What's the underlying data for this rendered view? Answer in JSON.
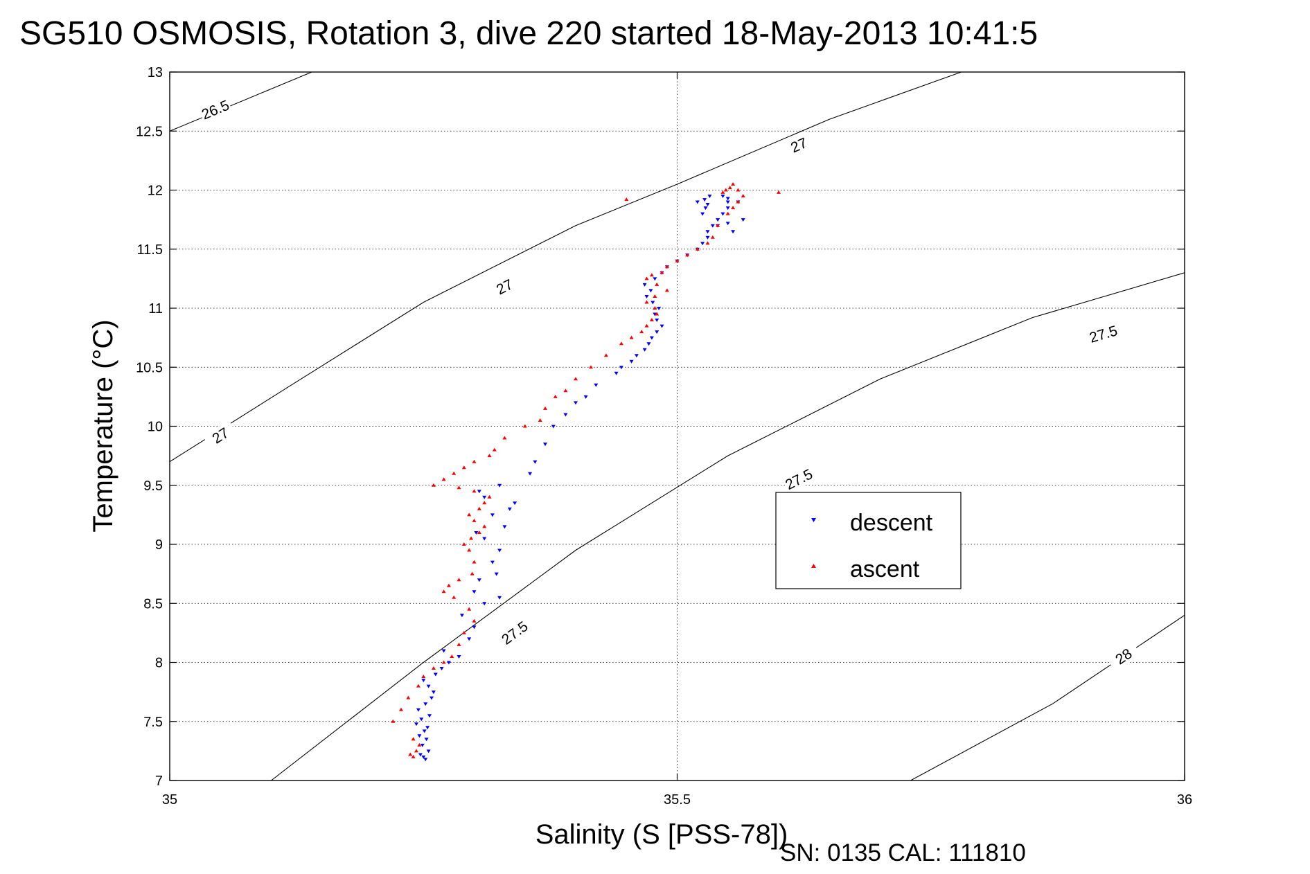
{
  "chart_data": {
    "type": "scatter",
    "title": "SG510 OSMOSIS, Rotation 3, dive 220 started 18-May-2013 10:41:5",
    "xlabel": "Salinity (S [PSS-78])",
    "ylabel": "Temperature (°C)",
    "xlim": [
      35,
      36
    ],
    "ylim": [
      7,
      13
    ],
    "xticks": [
      35,
      35.5,
      36
    ],
    "xtick_labels": [
      "35",
      "35.5",
      "36"
    ],
    "yticks": [
      7,
      7.5,
      8,
      8.5,
      9,
      9.5,
      10,
      10.5,
      11,
      11.5,
      12,
      12.5,
      13
    ],
    "ytick_labels": [
      "7",
      "7.5",
      "8",
      "8.5",
      "9",
      "9.5",
      "10",
      "10.5",
      "11",
      "11.5",
      "12",
      "12.5",
      "13"
    ],
    "grid": true,
    "legend_position": "right-center",
    "footer": "SN: 0135  CAL: 111810",
    "isopycnals": [
      {
        "label": "26.5",
        "line": [
          [
            35.0,
            12.5
          ],
          [
            35.14,
            13.0
          ]
        ],
        "labels_at": [
          [
            35.045,
            12.68
          ]
        ]
      },
      {
        "label": "27",
        "line": [
          [
            35.0,
            9.7
          ],
          [
            35.12,
            10.35
          ],
          [
            35.25,
            11.05
          ],
          [
            35.4,
            11.7
          ],
          [
            35.5,
            12.05
          ],
          [
            35.65,
            12.6
          ],
          [
            35.78,
            13.0
          ]
        ],
        "labels_at": [
          [
            35.05,
            9.92
          ],
          [
            35.33,
            11.18
          ],
          [
            35.62,
            12.38
          ]
        ]
      },
      {
        "label": "27.5",
        "line": [
          [
            35.1,
            7.0
          ],
          [
            35.25,
            8.0
          ],
          [
            35.4,
            8.95
          ],
          [
            35.55,
            9.75
          ],
          [
            35.7,
            10.4
          ],
          [
            35.85,
            10.92
          ],
          [
            36.0,
            11.3
          ]
        ],
        "labels_at": [
          [
            35.34,
            8.25
          ],
          [
            35.62,
            9.55
          ],
          [
            35.92,
            10.78
          ]
        ]
      },
      {
        "label": "28",
        "line": [
          [
            35.73,
            7.0
          ],
          [
            35.87,
            7.65
          ],
          [
            36.0,
            8.4
          ]
        ],
        "labels_at": [
          [
            35.94,
            8.05
          ]
        ]
      }
    ],
    "series": [
      {
        "name": "descent",
        "color": "#0000ff",
        "marker": "triangle-down",
        "x": [
          35.25,
          35.252,
          35.247,
          35.255,
          35.249,
          35.253,
          35.246,
          35.251,
          35.254,
          35.243,
          35.248,
          35.256,
          35.245,
          35.252,
          35.258,
          35.26,
          35.255,
          35.25,
          35.262,
          35.268,
          35.275,
          35.285,
          35.27,
          35.295,
          35.3,
          35.288,
          35.31,
          35.325,
          35.3,
          35.305,
          35.322,
          35.318,
          35.325,
          35.31,
          35.302,
          35.33,
          35.318,
          35.335,
          35.34,
          35.31,
          35.305,
          35.325,
          35.355,
          35.36,
          35.37,
          35.378,
          35.39,
          35.4,
          35.41,
          35.42,
          35.44,
          35.445,
          35.455,
          35.46,
          35.468,
          35.472,
          35.475,
          35.48,
          35.485,
          35.48,
          35.478,
          35.482,
          35.476,
          35.47,
          35.474,
          35.468,
          35.478,
          35.485,
          35.49,
          35.5,
          35.51,
          35.52,
          35.525,
          35.53,
          35.53,
          35.535,
          35.54,
          35.545,
          35.55,
          35.55,
          35.545,
          35.525,
          35.528,
          35.53,
          35.52,
          35.527,
          35.532,
          35.55,
          35.56,
          35.565,
          35.55,
          35.54,
          35.555
        ],
        "y": [
          7.2,
          7.18,
          7.22,
          7.25,
          7.3,
          7.35,
          7.38,
          7.42,
          7.45,
          7.48,
          7.52,
          7.55,
          7.6,
          7.65,
          7.7,
          7.75,
          7.8,
          7.85,
          7.9,
          7.95,
          8.0,
          8.05,
          8.1,
          8.2,
          8.3,
          8.4,
          8.5,
          8.55,
          8.6,
          8.7,
          8.75,
          8.85,
          8.95,
          9.05,
          9.1,
          9.15,
          9.25,
          9.3,
          9.35,
          9.4,
          9.45,
          9.5,
          9.6,
          9.7,
          9.85,
          10.0,
          10.1,
          10.2,
          10.25,
          10.35,
          10.45,
          10.5,
          10.55,
          10.6,
          10.65,
          10.7,
          10.75,
          10.8,
          10.85,
          10.9,
          10.95,
          11.0,
          11.05,
          11.1,
          11.15,
          11.2,
          11.25,
          11.3,
          11.35,
          11.4,
          11.45,
          11.5,
          11.55,
          11.6,
          11.65,
          11.7,
          11.75,
          11.8,
          11.85,
          11.9,
          11.95,
          11.8,
          11.85,
          11.88,
          11.9,
          11.92,
          11.95,
          11.93,
          11.9,
          11.75,
          11.72,
          11.7,
          11.65
        ]
      },
      {
        "name": "ascent",
        "color": "#ff0000",
        "marker": "triangle-up",
        "x": [
          35.24,
          35.237,
          35.243,
          35.246,
          35.24,
          35.22,
          35.228,
          35.235,
          35.245,
          35.25,
          35.26,
          35.27,
          35.278,
          35.285,
          35.29,
          35.3,
          35.295,
          35.28,
          35.27,
          35.275,
          35.285,
          35.298,
          35.3,
          35.295,
          35.29,
          35.297,
          35.305,
          35.31,
          35.3,
          35.295,
          35.305,
          35.31,
          35.315,
          35.3,
          35.285,
          35.26,
          35.27,
          35.28,
          35.29,
          35.3,
          35.315,
          35.32,
          35.33,
          35.35,
          35.365,
          35.37,
          35.38,
          35.39,
          35.4,
          35.415,
          35.43,
          35.445,
          35.455,
          35.465,
          35.47,
          35.475,
          35.48,
          35.478,
          35.47,
          35.478,
          35.49,
          35.48,
          35.47,
          35.475,
          35.485,
          35.49,
          35.5,
          35.51,
          35.52,
          35.53,
          35.535,
          35.54,
          35.55,
          35.555,
          35.56,
          35.565,
          35.56,
          35.555,
          35.45,
          35.6,
          35.545,
          35.548,
          35.552
        ],
        "y": [
          7.2,
          7.22,
          7.25,
          7.3,
          7.35,
          7.5,
          7.6,
          7.7,
          7.8,
          7.88,
          7.95,
          8.0,
          8.05,
          8.15,
          8.25,
          8.35,
          8.45,
          8.55,
          8.6,
          8.65,
          8.7,
          8.75,
          8.85,
          8.95,
          9.0,
          9.05,
          9.1,
          9.15,
          9.2,
          9.25,
          9.3,
          9.35,
          9.4,
          9.45,
          9.48,
          9.5,
          9.55,
          9.6,
          9.65,
          9.7,
          9.75,
          9.8,
          9.9,
          10.0,
          10.05,
          10.15,
          10.25,
          10.3,
          10.4,
          10.5,
          10.6,
          10.7,
          10.75,
          10.8,
          10.85,
          10.9,
          10.95,
          11.0,
          11.05,
          11.1,
          11.15,
          11.2,
          11.25,
          11.28,
          11.3,
          11.35,
          11.4,
          11.45,
          11.5,
          11.55,
          11.6,
          11.7,
          11.8,
          11.85,
          11.9,
          11.95,
          12.0,
          12.05,
          11.92,
          11.98,
          11.98,
          12.0,
          12.02
        ]
      }
    ]
  }
}
